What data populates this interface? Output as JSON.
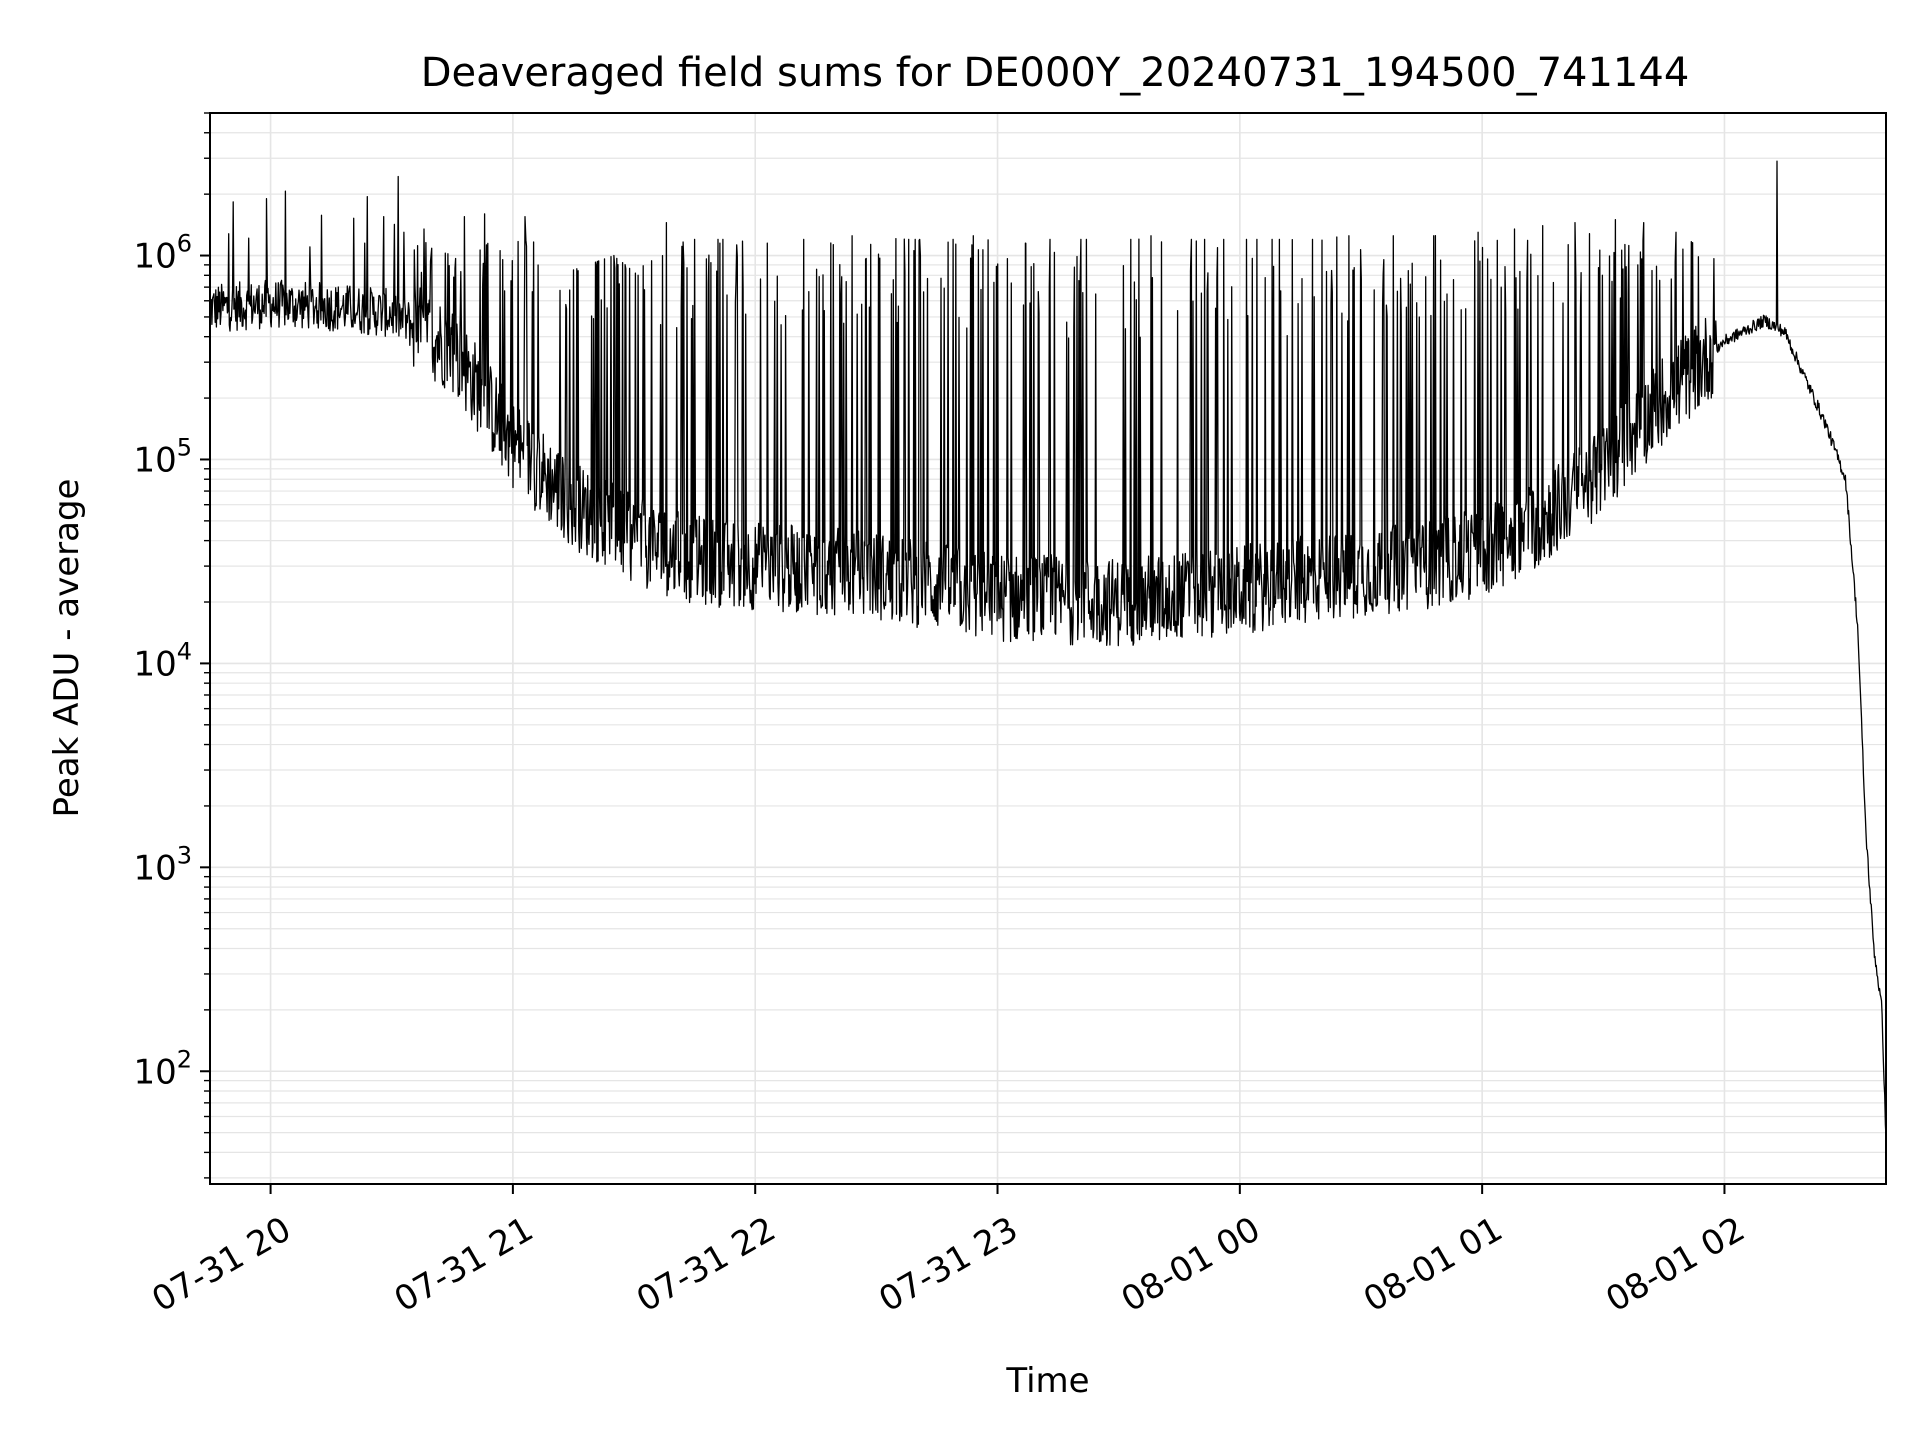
{
  "chart_data": {
    "type": "line",
    "title": "Deaveraged field sums for DE000Y_20240731_194500_741144",
    "xlabel": "Time",
    "ylabel": "Peak ADU - average",
    "yscale": "log",
    "xlim": [
      "2024-07-31 19:45",
      "2024-08-01 02:40"
    ],
    "ylim": [
      28,
      5000000
    ],
    "grid": true,
    "line_color": "#000000",
    "grid_color": "#e5e5e5",
    "x_ticks": [
      {
        "value": "2024-07-31 20:00",
        "label": "07-31 20"
      },
      {
        "value": "2024-07-31 21:00",
        "label": "07-31 21"
      },
      {
        "value": "2024-07-31 22:00",
        "label": "07-31 22"
      },
      {
        "value": "2024-07-31 23:00",
        "label": "07-31 23"
      },
      {
        "value": "2024-08-01 00:00",
        "label": "08-01 00"
      },
      {
        "value": "2024-08-01 01:00",
        "label": "08-01 01"
      },
      {
        "value": "2024-08-01 02:00",
        "label": "08-01 02"
      }
    ],
    "y_ticks": [
      {
        "value": 100,
        "base": "10",
        "exp": "2"
      },
      {
        "value": 1000,
        "base": "10",
        "exp": "3"
      },
      {
        "value": 10000,
        "base": "10",
        "exp": "4"
      },
      {
        "value": 100000,
        "base": "10",
        "exp": "5"
      },
      {
        "value": 1000000,
        "base": "10",
        "exp": "6"
      }
    ],
    "series": [
      {
        "baseline": {
          "x": [
            "2024-07-31 19:45",
            "2024-07-31 20:00",
            "2024-07-31 20:15",
            "2024-07-31 20:30",
            "2024-07-31 20:45",
            "2024-07-31 21:00",
            "2024-07-31 21:15",
            "2024-07-31 21:30",
            "2024-07-31 21:45",
            "2024-07-31 22:00",
            "2024-07-31 22:30",
            "2024-07-31 23:00",
            "2024-07-31 23:30",
            "2024-08-01 00:00",
            "2024-08-01 00:30",
            "2024-08-01 00:45",
            "2024-08-01 01:00",
            "2024-08-01 01:15",
            "2024-08-01 01:30",
            "2024-08-01 01:45",
            "2024-08-01 02:00",
            "2024-08-01 02:10",
            "2024-08-01 02:15",
            "2024-08-01 02:20",
            "2024-08-01 02:25",
            "2024-08-01 02:30",
            "2024-08-01 02:33",
            "2024-08-01 02:35",
            "2024-08-01 02:37",
            "2024-08-01 02:39",
            "2024-08-01 02:40"
          ],
          "y": [
            550000,
            580000,
            560000,
            520000,
            350000,
            120000,
            60000,
            40000,
            32000,
            30000,
            27000,
            21000,
            20000,
            23000,
            28000,
            30000,
            35000,
            50000,
            90000,
            200000,
            380000,
            480000,
            420000,
            250000,
            150000,
            80000,
            15000,
            1500,
            400,
            200,
            45
          ]
        },
        "spikes": {
          "x": [
            "2024-07-31 19:59",
            "2024-07-31 20:28",
            "2024-07-31 20:33",
            "2024-07-31 20:38",
            "2024-07-31 20:48",
            "2024-07-31 20:53",
            "2024-07-31 21:03",
            "2024-07-31 21:15",
            "2024-07-31 21:25",
            "2024-07-31 21:31",
            "2024-07-31 21:38",
            "2024-07-31 21:45",
            "2024-07-31 21:52",
            "2024-07-31 22:03",
            "2024-07-31 22:12",
            "2024-07-31 22:24",
            "2024-07-31 22:38",
            "2024-07-31 22:49",
            "2024-07-31 22:54",
            "2024-07-31 23:07",
            "2024-07-31 23:13",
            "2024-07-31 23:22",
            "2024-07-31 23:33",
            "2024-07-31 23:38",
            "2024-07-31 23:48",
            "2024-07-31 23:56",
            "2024-08-01 00:08",
            "2024-08-01 00:18",
            "2024-08-01 00:27",
            "2024-08-01 00:38",
            "2024-08-01 00:48",
            "2024-08-01 00:59",
            "2024-08-01 01:08",
            "2024-08-01 01:15",
            "2024-08-01 01:23",
            "2024-08-01 01:33",
            "2024-08-01 01:40",
            "2024-08-01 01:48",
            "2024-08-01 02:13"
          ],
          "y": [
            1900000,
            1550000,
            1300000,
            1350000,
            1550000,
            1600000,
            1550000,
            850000,
            1000000,
            800000,
            1450000,
            1200000,
            1200000,
            1150000,
            1200000,
            1250000,
            1200000,
            1200000,
            1250000,
            1150000,
            1200000,
            1200000,
            1200000,
            1250000,
            1200000,
            1200000,
            1200000,
            1200000,
            1250000,
            1250000,
            1250000,
            1300000,
            1350000,
            1400000,
            1450000,
            1500000,
            1450000,
            1300000,
            2900000
          ]
        }
      }
    ]
  }
}
